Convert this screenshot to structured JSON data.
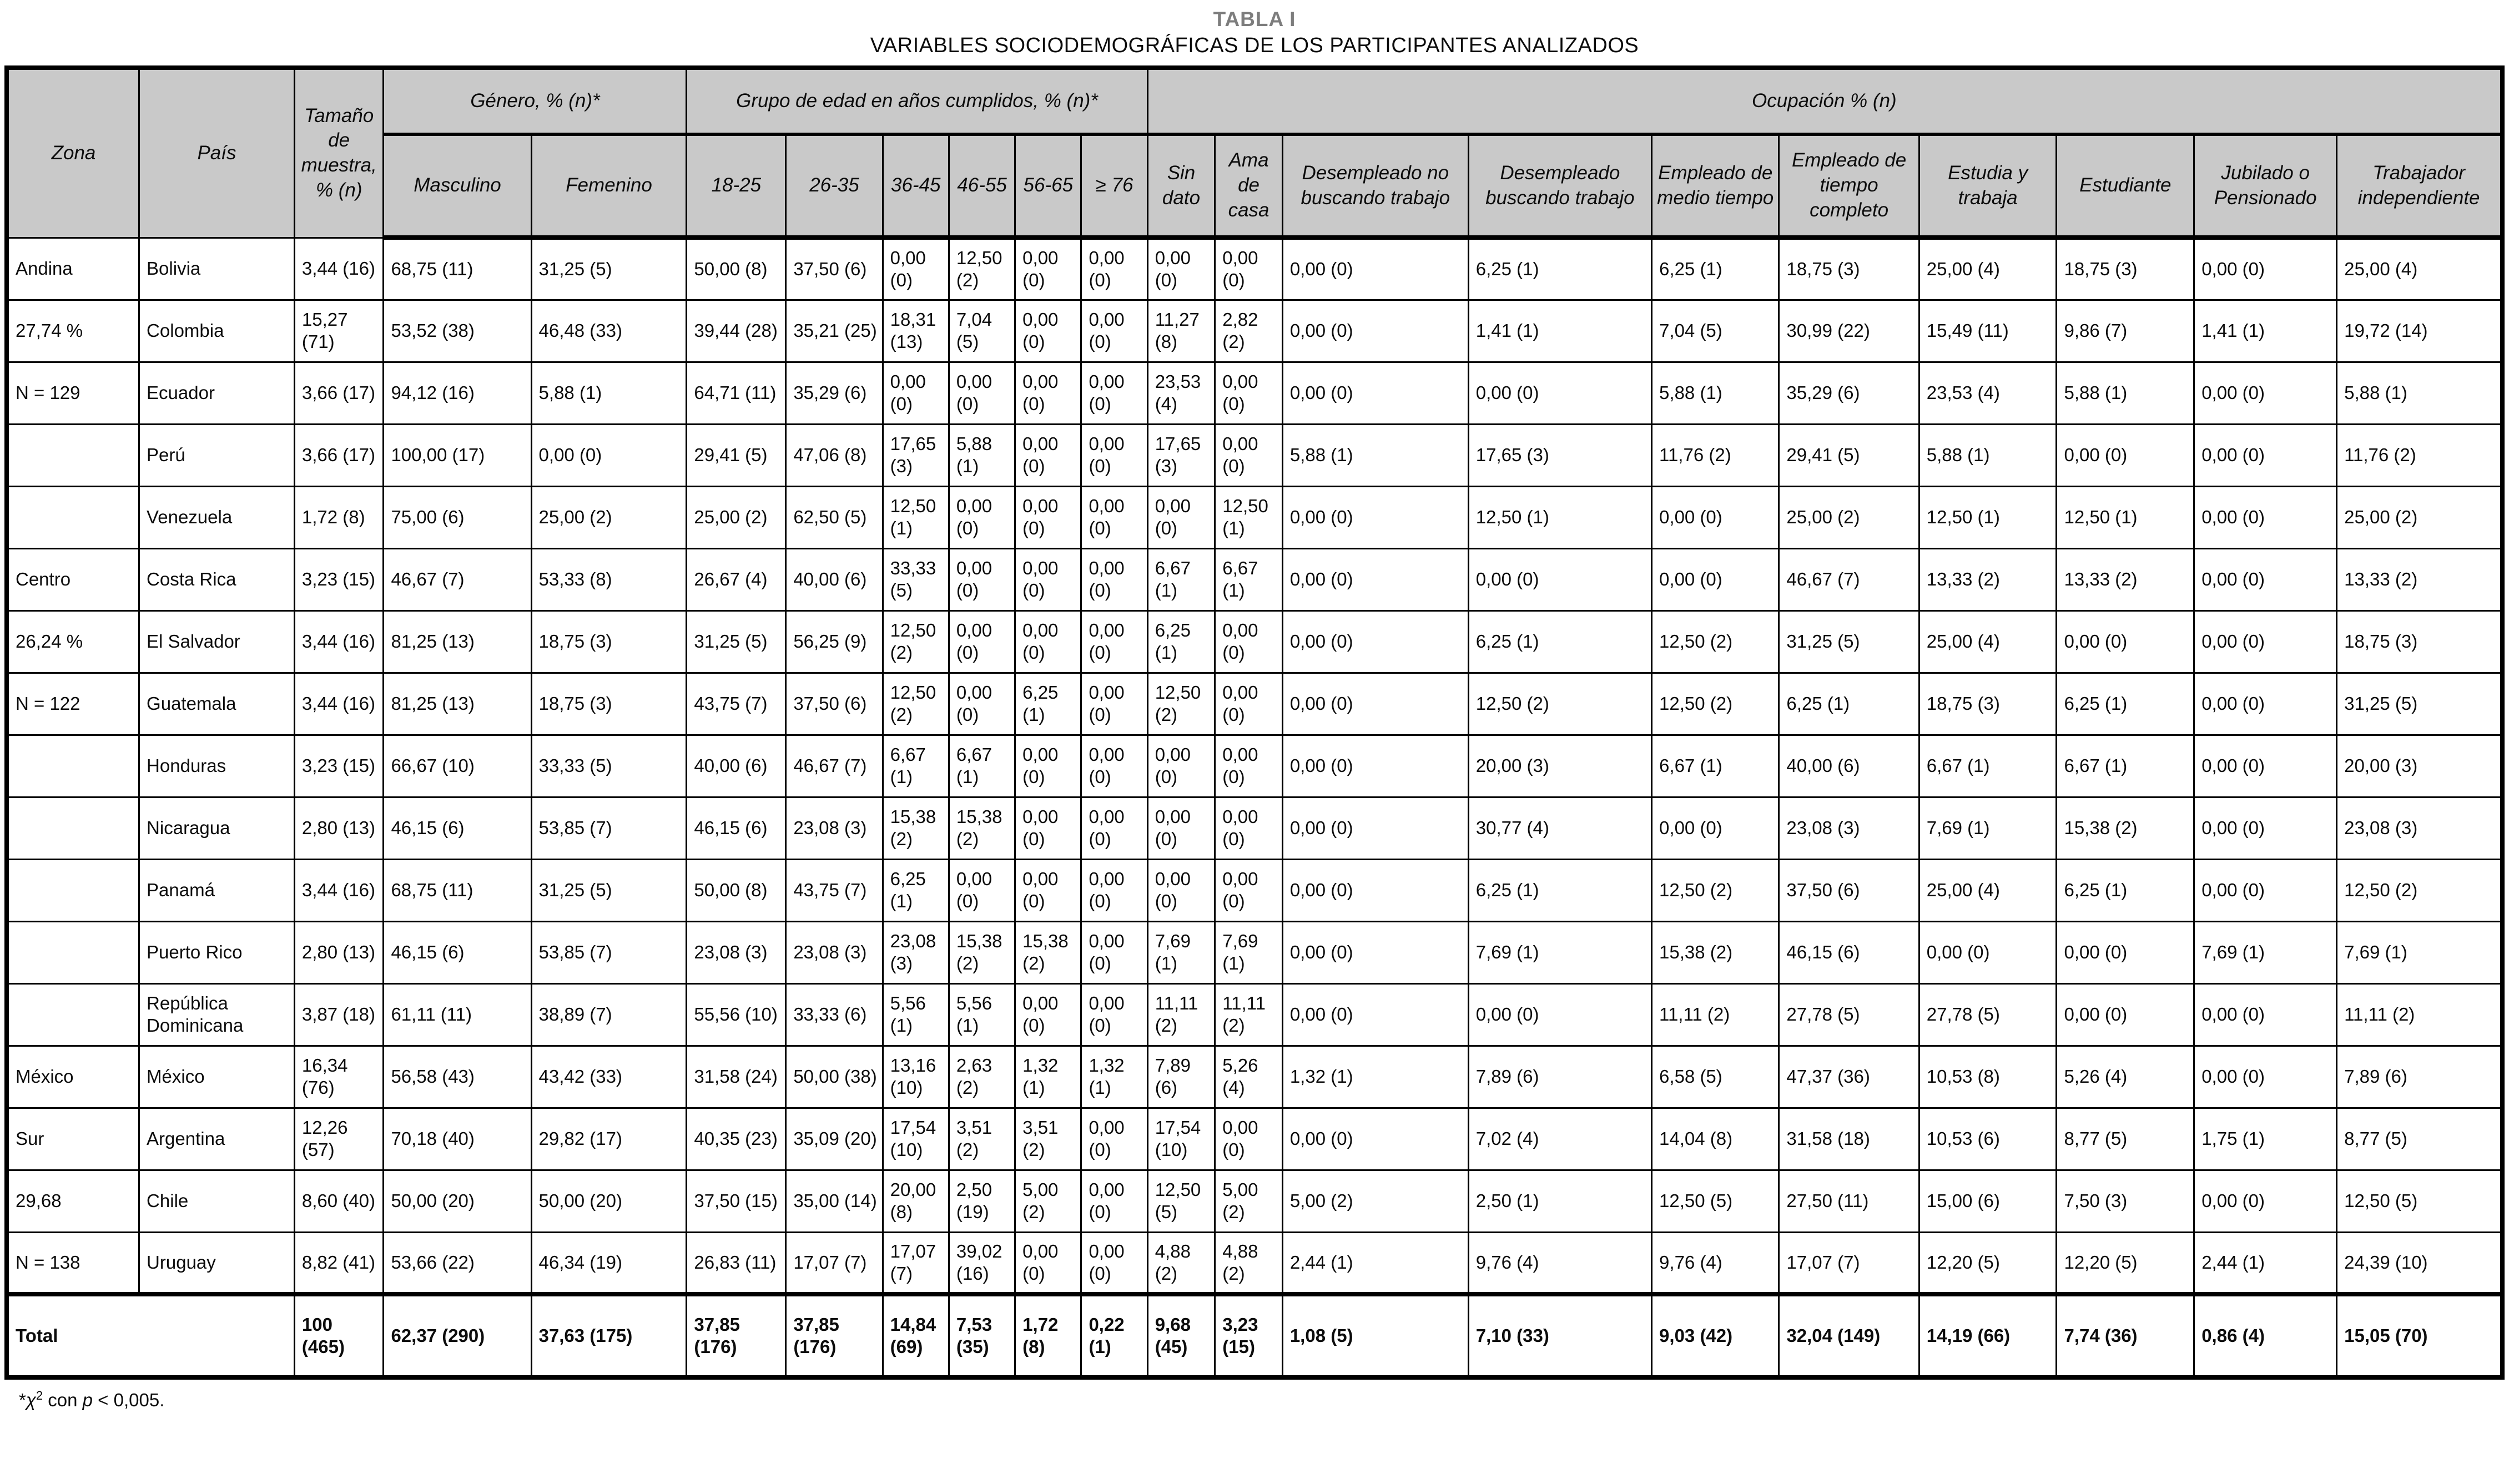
{
  "title": {
    "line1": "TABLA I",
    "line2": "VARIABLES SOCIODEMOGRÁFICAS DE LOS PARTICIPANTES ANALIZADOS"
  },
  "table": {
    "header": {
      "zona": "Zona",
      "pais": "País",
      "tamano": "Tamaño de muestra, % (n)",
      "genero": "Género, % (n)*",
      "grupo_edad": "Grupo de edad en años cumplidos, % (n)*",
      "ocupacion": "Ocupación % (n)",
      "sub": [
        "Masculino",
        "Femenino",
        "18-25",
        "26-35",
        "36-45",
        "46-55",
        "56-65",
        "≥ 76",
        "Sin dato",
        "Ama de casa",
        "Desempleado no buscando trabajo",
        "Desempleado buscando trabajo",
        "Empleado de medio tiempo",
        "Empleado de tiempo completo",
        "Estudia y trabaja",
        "Estudiante",
        "Jubilado o Pensionado",
        "Trabajador independiente"
      ]
    },
    "rows": [
      {
        "zona": "Andina",
        "pais": "Bolivia",
        "cells": [
          "3,44 (16)",
          "68,75 (11)",
          "31,25 (5)",
          "50,00 (8)",
          "37,50 (6)",
          "0,00 (0)",
          "12,50 (2)",
          "0,00 (0)",
          "0,00 (0)",
          "0,00 (0)",
          "0,00 (0)",
          "0,00 (0)",
          "6,25 (1)",
          "6,25 (1)",
          "18,75 (3)",
          "25,00 (4)",
          "18,75 (3)",
          "0,00 (0)",
          "25,00 (4)"
        ]
      },
      {
        "zona": "27,74 %",
        "pais": "Colombia",
        "cells": [
          "15,27 (71)",
          "53,52 (38)",
          "46,48 (33)",
          "39,44 (28)",
          "35,21 (25)",
          "18,31 (13)",
          "7,04 (5)",
          "0,00 (0)",
          "0,00 (0)",
          "11,27 (8)",
          "2,82 (2)",
          "0,00 (0)",
          "1,41 (1)",
          "7,04 (5)",
          "30,99 (22)",
          "15,49 (11)",
          "9,86 (7)",
          "1,41 (1)",
          "19,72 (14)"
        ]
      },
      {
        "zona": "N = 129",
        "pais": "Ecuador",
        "cells": [
          "3,66 (17)",
          "94,12 (16)",
          "5,88 (1)",
          "64,71 (11)",
          "35,29 (6)",
          "0,00 (0)",
          "0,00 (0)",
          "0,00 (0)",
          "0,00 (0)",
          "23,53 (4)",
          "0,00 (0)",
          "0,00 (0)",
          "0,00 (0)",
          "5,88 (1)",
          "35,29 (6)",
          "23,53 (4)",
          "5,88 (1)",
          "0,00 (0)",
          "5,88 (1)"
        ]
      },
      {
        "zona": "",
        "pais": "Perú",
        "cells": [
          "3,66 (17)",
          "100,00 (17)",
          "0,00 (0)",
          "29,41 (5)",
          "47,06 (8)",
          "17,65 (3)",
          "5,88 (1)",
          "0,00 (0)",
          "0,00 (0)",
          "17,65 (3)",
          "0,00 (0)",
          "5,88 (1)",
          "17,65 (3)",
          "11,76 (2)",
          "29,41 (5)",
          "5,88 (1)",
          "0,00 (0)",
          "0,00 (0)",
          "11,76 (2)"
        ]
      },
      {
        "zona": "",
        "pais": "Venezuela",
        "cells": [
          "1,72 (8)",
          "75,00 (6)",
          "25,00 (2)",
          "25,00 (2)",
          "62,50 (5)",
          "12,50 (1)",
          "0,00 (0)",
          "0,00 (0)",
          "0,00 (0)",
          "0,00 (0)",
          "12,50 (1)",
          "0,00 (0)",
          "12,50 (1)",
          "0,00 (0)",
          "25,00 (2)",
          "12,50 (1)",
          "12,50 (1)",
          "0,00 (0)",
          "25,00 (2)"
        ]
      },
      {
        "zona": "Centro",
        "pais": "Costa Rica",
        "cells": [
          "3,23 (15)",
          "46,67 (7)",
          "53,33 (8)",
          "26,67 (4)",
          "40,00 (6)",
          "33,33 (5)",
          "0,00 (0)",
          "0,00 (0)",
          "0,00 (0)",
          "6,67 (1)",
          "6,67 (1)",
          "0,00 (0)",
          "0,00 (0)",
          "0,00 (0)",
          "46,67 (7)",
          "13,33 (2)",
          "13,33 (2)",
          "0,00 (0)",
          "13,33 (2)"
        ]
      },
      {
        "zona": "26,24 %",
        "pais": "El Salvador",
        "cells": [
          "3,44 (16)",
          "81,25 (13)",
          "18,75 (3)",
          "31,25 (5)",
          "56,25 (9)",
          "12,50 (2)",
          "0,00 (0)",
          "0,00 (0)",
          "0,00 (0)",
          "6,25 (1)",
          "0,00 (0)",
          "0,00 (0)",
          "6,25 (1)",
          "12,50 (2)",
          "31,25 (5)",
          "25,00 (4)",
          "0,00 (0)",
          "0,00 (0)",
          "18,75 (3)"
        ]
      },
      {
        "zona": "N = 122",
        "pais": "Guatemala",
        "cells": [
          "3,44 (16)",
          "81,25 (13)",
          "18,75 (3)",
          "43,75 (7)",
          "37,50 (6)",
          "12,50 (2)",
          "0,00 (0)",
          "6,25 (1)",
          "0,00 (0)",
          "12,50 (2)",
          "0,00 (0)",
          "0,00 (0)",
          "12,50 (2)",
          "12,50 (2)",
          "6,25 (1)",
          "18,75 (3)",
          "6,25 (1)",
          "0,00 (0)",
          "31,25 (5)"
        ]
      },
      {
        "zona": "",
        "pais": "Honduras",
        "cells": [
          "3,23 (15)",
          "66,67 (10)",
          "33,33 (5)",
          "40,00 (6)",
          "46,67 (7)",
          "6,67 (1)",
          "6,67 (1)",
          "0,00 (0)",
          "0,00 (0)",
          "0,00 (0)",
          "0,00 (0)",
          "0,00 (0)",
          "20,00 (3)",
          "6,67 (1)",
          "40,00 (6)",
          "6,67 (1)",
          "6,67 (1)",
          "0,00 (0)",
          "20,00 (3)"
        ]
      },
      {
        "zona": "",
        "pais": "Nicaragua",
        "cells": [
          "2,80 (13)",
          "46,15 (6)",
          "53,85 (7)",
          "46,15 (6)",
          "23,08 (3)",
          "15,38 (2)",
          "15,38 (2)",
          "0,00 (0)",
          "0,00 (0)",
          "0,00 (0)",
          "0,00 (0)",
          "0,00 (0)",
          "30,77 (4)",
          "0,00 (0)",
          "23,08 (3)",
          "7,69 (1)",
          "15,38 (2)",
          "0,00 (0)",
          "23,08 (3)"
        ]
      },
      {
        "zona": "",
        "pais": "Panamá",
        "cells": [
          "3,44 (16)",
          "68,75 (11)",
          "31,25 (5)",
          "50,00 (8)",
          "43,75 (7)",
          "6,25 (1)",
          "0,00 (0)",
          "0,00 (0)",
          "0,00 (0)",
          "0,00 (0)",
          "0,00 (0)",
          "0,00 (0)",
          "6,25 (1)",
          "12,50 (2)",
          "37,50 (6)",
          "25,00 (4)",
          "6,25 (1)",
          "0,00 (0)",
          "12,50 (2)"
        ]
      },
      {
        "zona": "",
        "pais": "Puerto Rico",
        "cells": [
          "2,80 (13)",
          "46,15 (6)",
          "53,85 (7)",
          "23,08 (3)",
          "23,08 (3)",
          "23,08 (3)",
          "15,38 (2)",
          "15,38 (2)",
          "0,00 (0)",
          "7,69 (1)",
          "7,69 (1)",
          "0,00 (0)",
          "7,69 (1)",
          "15,38 (2)",
          "46,15 (6)",
          "0,00 (0)",
          "0,00 (0)",
          "7,69 (1)",
          "7,69 (1)"
        ]
      },
      {
        "zona": "",
        "pais": "República Dominicana",
        "cells": [
          "3,87 (18)",
          "61,11 (11)",
          "38,89 (7)",
          "55,56 (10)",
          "33,33 (6)",
          "5,56 (1)",
          "5,56 (1)",
          "0,00 (0)",
          "0,00 (0)",
          "11,11 (2)",
          "11,11 (2)",
          "0,00 (0)",
          "0,00 (0)",
          "11,11 (2)",
          "27,78 (5)",
          "27,78 (5)",
          "0,00 (0)",
          "0,00 (0)",
          "11,11 (2)"
        ]
      },
      {
        "zona": "México",
        "pais": "México",
        "cells": [
          "16,34 (76)",
          "56,58 (43)",
          "43,42 (33)",
          "31,58 (24)",
          "50,00 (38)",
          "13,16 (10)",
          "2,63 (2)",
          "1,32 (1)",
          "1,32 (1)",
          "7,89 (6)",
          "5,26 (4)",
          "1,32 (1)",
          "7,89 (6)",
          "6,58 (5)",
          "47,37 (36)",
          "10,53 (8)",
          "5,26 (4)",
          "0,00 (0)",
          "7,89 (6)"
        ]
      },
      {
        "zona": "Sur",
        "pais": "Argentina",
        "cells": [
          "12,26 (57)",
          "70,18 (40)",
          "29,82 (17)",
          "40,35 (23)",
          "35,09 (20)",
          "17,54 (10)",
          "3,51 (2)",
          "3,51 (2)",
          "0,00 (0)",
          "17,54 (10)",
          "0,00 (0)",
          "0,00 (0)",
          "7,02 (4)",
          "14,04 (8)",
          "31,58 (18)",
          "10,53 (6)",
          "8,77 (5)",
          "1,75 (1)",
          "8,77 (5)"
        ]
      },
      {
        "zona": "29,68",
        "pais": "Chile",
        "cells": [
          "8,60 (40)",
          "50,00 (20)",
          "50,00 (20)",
          "37,50 (15)",
          "35,00 (14)",
          "20,00 (8)",
          "2,50 (19)",
          "5,00 (2)",
          "0,00 (0)",
          "12,50 (5)",
          "5,00 (2)",
          "5,00 (2)",
          "2,50 (1)",
          "12,50 (5)",
          "27,50 (11)",
          "15,00 (6)",
          "7,50 (3)",
          "0,00 (0)",
          "12,50 (5)"
        ]
      },
      {
        "zona": "N = 138",
        "pais": "Uruguay",
        "cells": [
          "8,82 (41)",
          "53,66 (22)",
          "46,34 (19)",
          "26,83 (11)",
          "17,07 (7)",
          "17,07 (7)",
          "39,02 (16)",
          "0,00 (0)",
          "0,00 (0)",
          "4,88 (2)",
          "4,88 (2)",
          "2,44 (1)",
          "9,76 (4)",
          "9,76 (4)",
          "17,07 (7)",
          "12,20 (5)",
          "12,20 (5)",
          "2,44 (1)",
          "24,39 (10)"
        ]
      }
    ],
    "total": {
      "label": "Total",
      "cells": [
        "100 (465)",
        "62,37 (290)",
        "37,63 (175)",
        "37,85 (176)",
        "37,85 (176)",
        "14,84 (69)",
        "7,53 (35)",
        "1,72 (8)",
        "0,22 (1)",
        "9,68 (45)",
        "3,23 (15)",
        "1,08 (5)",
        "7,10 (33)",
        "9,03 (42)",
        "32,04 (149)",
        "14,19 (66)",
        "7,74 (36)",
        "0,86 (4)",
        "15,05 (70)"
      ]
    }
  },
  "footnote": {
    "star": "*",
    "chi": "χ",
    "sup": "2",
    "mid": " con ",
    "p": "p",
    "post": " < 0,005."
  }
}
